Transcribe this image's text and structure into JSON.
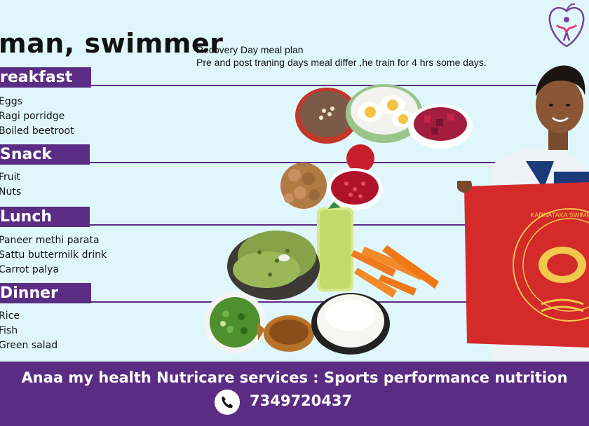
{
  "header": {
    "title": "man, swimmer",
    "subtitle_line1": "Recovery Day meal plan",
    "subtitle_line2": "Pre and post traning days  meal differ ,he train for  4 hrs some days."
  },
  "sections": [
    {
      "label": "reakfast",
      "items": [
        "Eggs",
        "Ragi porridge",
        "Boiled beetroot"
      ]
    },
    {
      "label": "Snack",
      "items": [
        "Fruit",
        "Nuts"
      ]
    },
    {
      "label": "Lunch",
      "items": [
        "Paneer methi parata",
        "Sattu buttermilk drink",
        "Carrot palya"
      ]
    },
    {
      "label": "Dinner",
      "items": [
        "Rice",
        "Fish",
        "Green salad"
      ]
    }
  ],
  "flag": {
    "text": "KARNATAKA SWIMMING A"
  },
  "footer": {
    "tagline": "Anaa my health Nutricare services : Sports performance nutrition",
    "phone": "7349720437"
  },
  "colors": {
    "accent": "#5b2c83",
    "background": "#dff7fa",
    "flag": "#d42a2a"
  },
  "icons": {
    "logo": "apple-heart-logo-icon",
    "phone": "phone-icon"
  }
}
